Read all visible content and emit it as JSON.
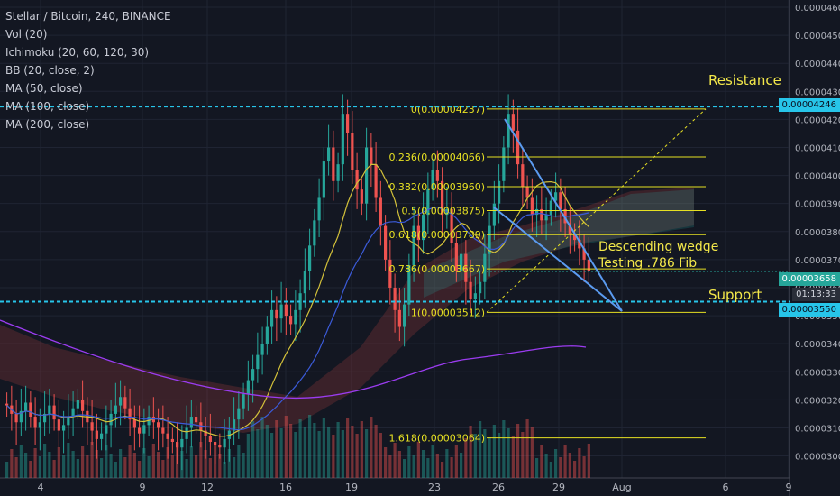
{
  "legend": {
    "title": "Stellar / Bitcoin, 240, BINANCE",
    "indicators": [
      "Vol (20)",
      "Ichimoku (20, 60, 120, 30)",
      "BB (20, close, 2)",
      "MA (50, close)",
      "MA (100, close)",
      "MA (200, close)"
    ]
  },
  "annotations": {
    "resistance": "Resistance",
    "support": "Support",
    "wedge1": "Descending wedge",
    "wedge2": "Testing .786 Fib"
  },
  "price_tags": {
    "resistance": "0.00004246",
    "current": "0.00003658",
    "countdown": "01:13:33",
    "support": "0.00003550"
  },
  "colors": {
    "background": "#131722",
    "up": "#26a69a",
    "down": "#ef5350",
    "fib": "#e6e022",
    "levels": "#27c5e9",
    "wedge": "#5b9bf0",
    "annotation": "#f3e84a",
    "ma50": "#d4c23a",
    "ma100": "#3b5bd9",
    "ma200": "#9b3cf0"
  },
  "chart_data": {
    "type": "candlestick",
    "symbol": "Stellar / Bitcoin",
    "interval": "240",
    "exchange": "BINANCE",
    "y_range": [
      2.96e-05,
      4.6e-05
    ],
    "y_ticks": [
      "0.00003000",
      "0.00003100",
      "0.00003200",
      "0.00003300",
      "0.00003400",
      "0.00003500",
      "0.00003600",
      "0.00003700",
      "0.00003800",
      "0.00003900",
      "0.00004000",
      "0.00004100",
      "0.00004200",
      "0.00004300",
      "0.00004400",
      "0.00004500",
      "0.00004600"
    ],
    "x_ticks": [
      "4",
      "9",
      "12",
      "16",
      "19",
      "23",
      "26",
      "29",
      "Aug",
      "6",
      "9"
    ],
    "fib_levels": [
      {
        "label": "0(0.00004237)",
        "value": 4.237e-05
      },
      {
        "label": "0.236(0.00004066)",
        "value": 4.066e-05
      },
      {
        "label": "0.382(0.00003960)",
        "value": 3.96e-05
      },
      {
        "label": "0.5(0.00003875)",
        "value": 3.875e-05
      },
      {
        "label": "0.618(0.00003789)",
        "value": 3.789e-05
      },
      {
        "label": "0.786(0.00003667)",
        "value": 3.667e-05
      },
      {
        "label": "1(0.00003512)",
        "value": 3.512e-05
      },
      {
        "label": "1.618(0.00003064)",
        "value": 3.064e-05
      }
    ],
    "resistance_level": 4.246e-05,
    "support_level": 3.55e-05,
    "last_price": 3.658e-05,
    "closes": [
      3.18e-05,
      3.15e-05,
      3.12e-05,
      3.16e-05,
      3.19e-05,
      3.14e-05,
      3.1e-05,
      3.12e-05,
      3.15e-05,
      3.18e-05,
      3.13e-05,
      3.09e-05,
      3.11e-05,
      3.14e-05,
      3.17e-05,
      3.2e-05,
      3.16e-05,
      3.12e-05,
      3.09e-05,
      3.06e-05,
      3.08e-05,
      3.11e-05,
      3.15e-05,
      3.18e-05,
      3.21e-05,
      3.17e-05,
      3.13e-05,
      3.1e-05,
      3.08e-05,
      3.11e-05,
      3.14e-05,
      3.12e-05,
      3.1e-05,
      3.08e-05,
      3.06e-05,
      3.05e-05,
      3.03e-05,
      3.06e-05,
      3.1e-05,
      3.14e-05,
      3.12e-05,
      3.09e-05,
      3.07e-05,
      3.05e-05,
      3.04e-05,
      3.03e-05,
      3.06e-05,
      3.09e-05,
      3.13e-05,
      3.17e-05,
      3.22e-05,
      3.27e-05,
      3.31e-05,
      3.36e-05,
      3.4e-05,
      3.46e-05,
      3.52e-05,
      3.49e-05,
      3.54e-05,
      3.5e-05,
      3.47e-05,
      3.52e-05,
      3.58e-05,
      3.66e-05,
      3.75e-05,
      3.84e-05,
      3.92e-05,
      4.05e-05,
      4.1e-05,
      3.98e-05,
      4.04e-05,
      4.22e-05,
      4.15e-05,
      4.02e-05,
      3.95e-05,
      3.9e-05,
      4.1e-05,
      4.04e-05,
      3.92e-05,
      3.82e-05,
      3.7e-05,
      3.6e-05,
      3.52e-05,
      3.46e-05,
      3.54e-05,
      3.68e-05,
      3.82e-05,
      3.77e-05,
      3.86e-05,
      3.95e-05,
      4.02e-05,
      3.98e-05,
      3.86e-05,
      3.88e-05,
      3.76e-05,
      3.66e-05,
      3.72e-05,
      3.62e-05,
      3.56e-05,
      3.58e-05,
      3.62e-05,
      3.72e-05,
      3.82e-05,
      3.9e-05,
      3.98e-05,
      4.1e-05,
      4.22e-05,
      4.16e-05,
      4.04e-05,
      3.96e-05,
      3.92e-05,
      3.86e-05,
      3.88e-05,
      3.84e-05,
      3.86e-05,
      3.91e-05,
      3.94e-05,
      3.88e-05,
      3.83e-05,
      3.79e-05,
      3.77e-05,
      3.74e-05,
      3.7e-05,
      3.66e-05
    ]
  }
}
